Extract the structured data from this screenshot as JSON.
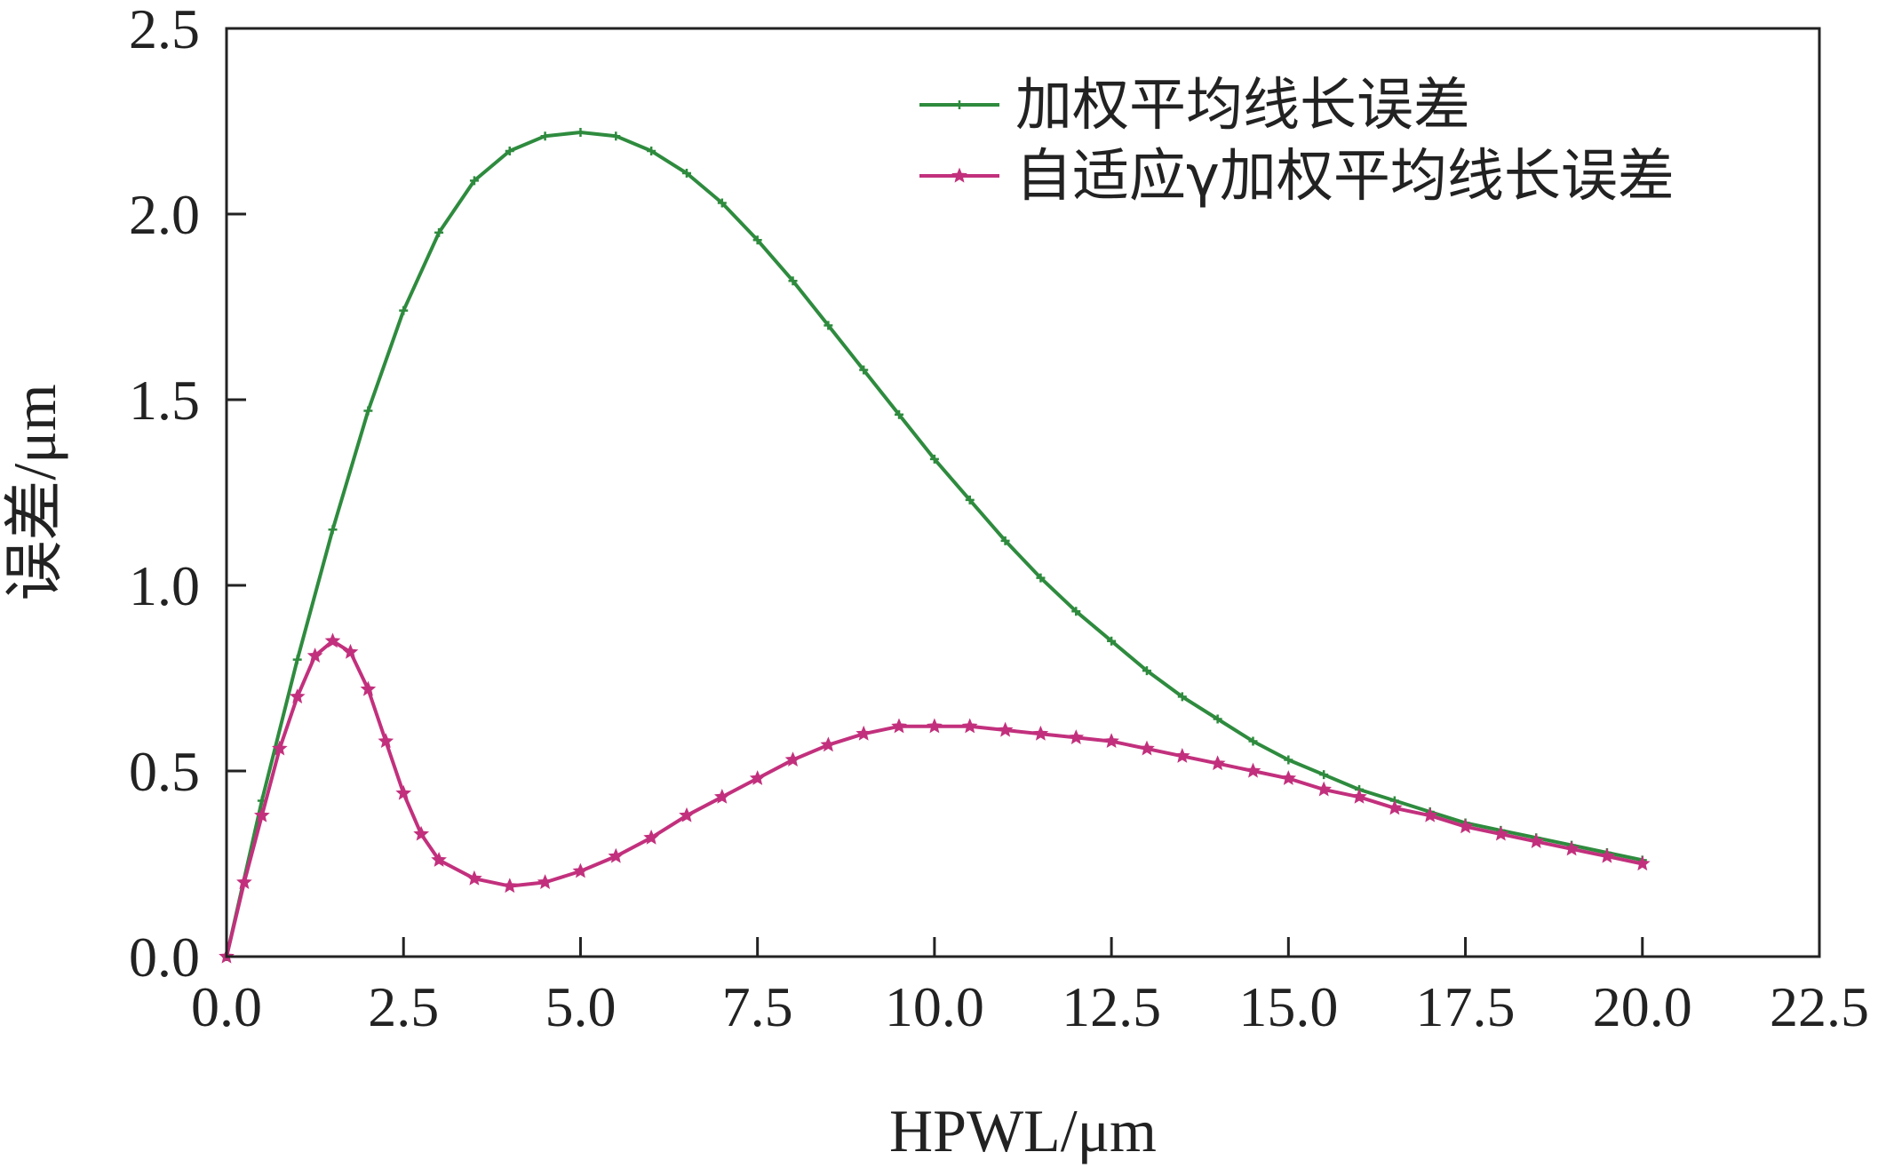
{
  "chart_data": {
    "type": "line",
    "xlabel": "HPWL/μm",
    "ylabel": "误差/μm",
    "xlim": [
      0,
      22.5
    ],
    "ylim": [
      0,
      2.5
    ],
    "xticks": [
      "0.0",
      "2.5",
      "5.0",
      "7.5",
      "10.0",
      "12.5",
      "15.0",
      "17.5",
      "20.0",
      "22.5"
    ],
    "yticks": [
      "0.0",
      "0.5",
      "1.0",
      "1.5",
      "2.0",
      "2.5"
    ],
    "grid": false,
    "legend_position": "top-right",
    "series": [
      {
        "name": "加权平均线长误差",
        "color": "#2e8b3e",
        "marker": "plus",
        "x": [
          0,
          0.5,
          1,
          1.5,
          2,
          2.5,
          3,
          3.5,
          4,
          4.5,
          5,
          5.5,
          6,
          6.5,
          7,
          7.5,
          8,
          8.5,
          9,
          9.5,
          10,
          10.5,
          11,
          11.5,
          12,
          12.5,
          13,
          13.5,
          14,
          14.5,
          15,
          15.5,
          16,
          16.5,
          17,
          17.5,
          18,
          18.5,
          19,
          19.5,
          20
        ],
        "y": [
          0.0,
          0.42,
          0.8,
          1.15,
          1.47,
          1.74,
          1.95,
          2.09,
          2.17,
          2.21,
          2.22,
          2.21,
          2.17,
          2.11,
          2.03,
          1.93,
          1.82,
          1.7,
          1.58,
          1.46,
          1.34,
          1.23,
          1.12,
          1.02,
          0.93,
          0.85,
          0.77,
          0.7,
          0.64,
          0.58,
          0.53,
          0.49,
          0.45,
          0.42,
          0.39,
          0.36,
          0.34,
          0.32,
          0.3,
          0.28,
          0.26
        ]
      },
      {
        "name": "自适应γ加权平均线长误差",
        "color": "#c2307d",
        "marker": "star",
        "x": [
          0,
          0.25,
          0.5,
          0.75,
          1.0,
          1.25,
          1.5,
          1.75,
          2.0,
          2.25,
          2.5,
          2.75,
          3.0,
          3.5,
          4.0,
          4.5,
          5.0,
          5.5,
          6.0,
          6.5,
          7.0,
          7.5,
          8.0,
          8.5,
          9.0,
          9.5,
          10.0,
          10.5,
          11.0,
          11.5,
          12.0,
          12.5,
          13.0,
          13.5,
          14.0,
          14.5,
          15.0,
          15.5,
          16.0,
          16.5,
          17.0,
          17.5,
          18.0,
          18.5,
          19.0,
          19.5,
          20.0
        ],
        "y": [
          0.0,
          0.2,
          0.38,
          0.56,
          0.7,
          0.81,
          0.85,
          0.82,
          0.72,
          0.58,
          0.44,
          0.33,
          0.26,
          0.21,
          0.19,
          0.2,
          0.23,
          0.27,
          0.32,
          0.38,
          0.43,
          0.48,
          0.53,
          0.57,
          0.6,
          0.62,
          0.62,
          0.62,
          0.61,
          0.6,
          0.59,
          0.58,
          0.56,
          0.54,
          0.52,
          0.5,
          0.48,
          0.45,
          0.43,
          0.4,
          0.38,
          0.35,
          0.33,
          0.31,
          0.29,
          0.27,
          0.25
        ]
      }
    ]
  }
}
